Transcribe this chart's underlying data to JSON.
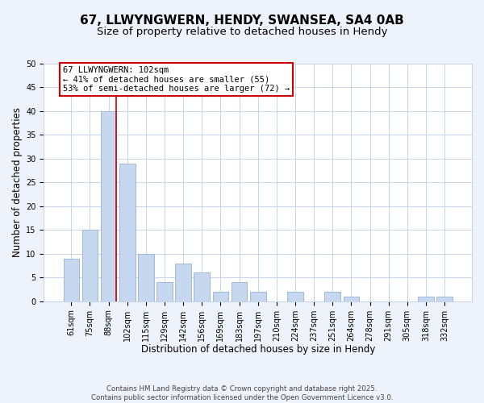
{
  "title": "67, LLWYNGWERN, HENDY, SWANSEA, SA4 0AB",
  "subtitle": "Size of property relative to detached houses in Hendy",
  "xlabel": "Distribution of detached houses by size in Hendy",
  "ylabel": "Number of detached properties",
  "bar_labels": [
    "61sqm",
    "75sqm",
    "88sqm",
    "102sqm",
    "115sqm",
    "129sqm",
    "142sqm",
    "156sqm",
    "169sqm",
    "183sqm",
    "197sqm",
    "210sqm",
    "224sqm",
    "237sqm",
    "251sqm",
    "264sqm",
    "278sqm",
    "291sqm",
    "305sqm",
    "318sqm",
    "332sqm"
  ],
  "bar_values": [
    9,
    15,
    40,
    29,
    10,
    4,
    8,
    6,
    2,
    4,
    2,
    0,
    2,
    0,
    2,
    1,
    0,
    0,
    0,
    1,
    1
  ],
  "ylim": [
    0,
    50
  ],
  "yticks": [
    0,
    5,
    10,
    15,
    20,
    25,
    30,
    35,
    40,
    45,
    50
  ],
  "bar_color": "#c5d8f0",
  "bar_edgecolor": "#a0b8d8",
  "red_line_bar_index": 2,
  "highlight_line_color": "#cc0000",
  "annotation_title": "67 LLWYNGWERN: 102sqm",
  "annotation_line1": "← 41% of detached houses are smaller (55)",
  "annotation_line2": "53% of semi-detached houses are larger (72) →",
  "annotation_box_edgecolor": "#cc0000",
  "annotation_box_facecolor": "#ffffff",
  "footer_line1": "Contains HM Land Registry data © Crown copyright and database right 2025.",
  "footer_line2": "Contains public sector information licensed under the Open Government Licence v3.0.",
  "background_color": "#eef2fb",
  "plot_background_color": "#ffffff",
  "grid_color": "#c8d4e8",
  "title_fontsize": 11,
  "subtitle_fontsize": 9.5,
  "tick_fontsize": 7,
  "axis_label_fontsize": 8.5
}
